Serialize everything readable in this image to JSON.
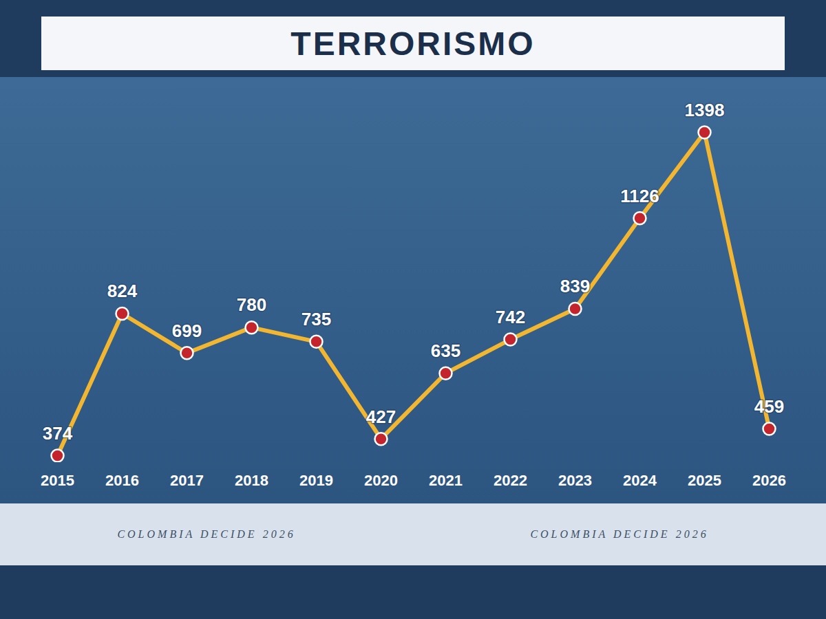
{
  "chart_data": {
    "type": "line",
    "title": "TERRORISMO",
    "categories": [
      "2015",
      "2016",
      "2017",
      "2018",
      "2019",
      "2020",
      "2021",
      "2022",
      "2023",
      "2024",
      "2025",
      "2026"
    ],
    "values": [
      374,
      824,
      699,
      780,
      735,
      427,
      635,
      742,
      839,
      1126,
      1398,
      459
    ],
    "color": "#f2b630",
    "marker": "circle",
    "data_labels": true,
    "tick_labels": "x",
    "grid": false,
    "annotations": [
      "COLOMBIA DECIDE 2026",
      "COLOMBIA DECIDE 2026"
    ]
  }
}
